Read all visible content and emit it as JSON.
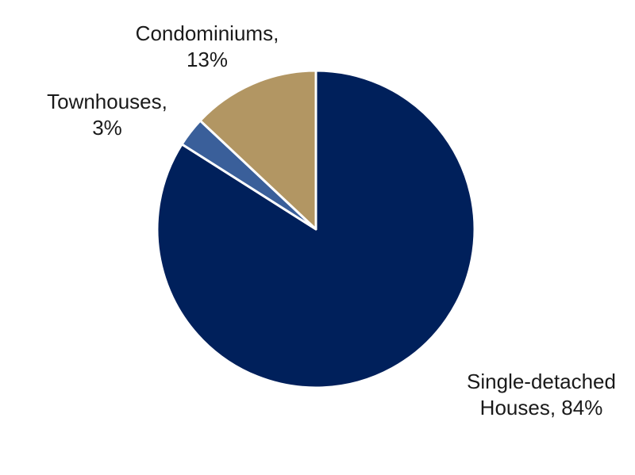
{
  "chart_data": {
    "type": "pie",
    "title": "",
    "start_angle_deg": 0,
    "direction": "clockwise",
    "slices": [
      {
        "label_lines": [
          "Single-detached",
          "Houses, 84%"
        ],
        "value": 84,
        "color": "#00205b"
      },
      {
        "label_lines": [
          "Townhouses,",
          "3%"
        ],
        "value": 3,
        "color": "#3a5f9a"
      },
      {
        "label_lines": [
          "Condominiums,",
          "13%"
        ],
        "value": 13,
        "color": "#b29663"
      }
    ]
  }
}
